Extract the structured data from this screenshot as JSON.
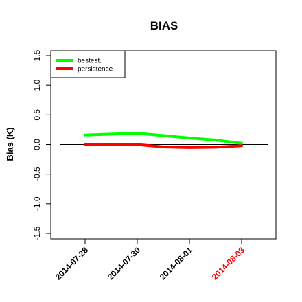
{
  "chart_data": {
    "type": "line",
    "title": "BIAS",
    "xlabel": "",
    "ylabel": "Bias (K)",
    "ylim": [
      -1.5,
      1.5
    ],
    "y_ticks": [
      "-1.5",
      "-1.0",
      "-0.5",
      "0.0",
      "0.5",
      "1.0",
      "1.5"
    ],
    "y_tick_values": [
      -1.5,
      -1.0,
      -0.5,
      0.0,
      0.5,
      1.0,
      1.5
    ],
    "x_categories": [
      "2014-07-28",
      "2014-07-30",
      "2014-08-01",
      "2014-08-03"
    ],
    "x_tick_colors": [
      "#000000",
      "#000000",
      "#000000",
      "#ff0000"
    ],
    "x": [
      "2014-07-28",
      "2014-07-29",
      "2014-07-30",
      "2014-07-31",
      "2014-08-01",
      "2014-08-02",
      "2014-08-03"
    ],
    "series": [
      {
        "name": "bestest.",
        "color": "#00ff00",
        "values": [
          0.16,
          0.175,
          0.19,
          0.15,
          0.11,
          0.075,
          0.02
        ]
      },
      {
        "name": "persistence",
        "color": "#ff0000",
        "values": [
          0.0,
          -0.005,
          0.0,
          -0.04,
          -0.05,
          -0.045,
          -0.02
        ]
      }
    ],
    "reference_line": 0.0,
    "legend_position": "top-left",
    "grid": false
  }
}
